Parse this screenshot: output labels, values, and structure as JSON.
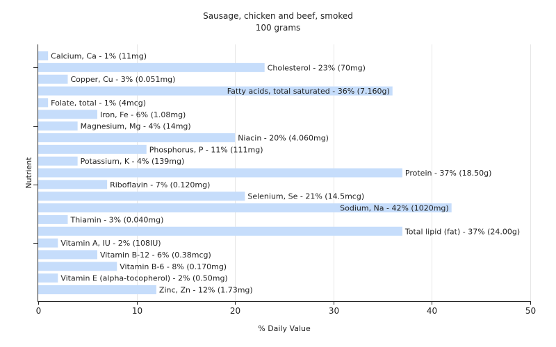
{
  "chart_data": {
    "type": "bar",
    "orientation": "horizontal",
    "title": "Sausage, chicken and beef, smoked",
    "subtitle": "100 grams",
    "xlabel": "% Daily Value",
    "ylabel": "Nutrient",
    "xlim": [
      0,
      50
    ],
    "xticks": [
      0,
      10,
      20,
      30,
      40,
      50
    ],
    "grid": true,
    "bar_color": "#c6ddfb",
    "categories": [
      "Calcium, Ca",
      "Cholesterol",
      "Copper, Cu",
      "Fatty acids, total saturated",
      "Folate, total",
      "Iron, Fe",
      "Magnesium, Mg",
      "Niacin",
      "Phosphorus, P",
      "Potassium, K",
      "Protein",
      "Riboflavin",
      "Selenium, Se",
      "Sodium, Na",
      "Thiamin",
      "Total lipid (fat)",
      "Vitamin A, IU",
      "Vitamin B-12",
      "Vitamin B-6",
      "Vitamin E (alpha-tocopherol)",
      "Zinc, Zn"
    ],
    "values": [
      1,
      23,
      3,
      36,
      1,
      6,
      4,
      20,
      11,
      4,
      37,
      7,
      21,
      42,
      3,
      37,
      2,
      6,
      8,
      2,
      12
    ],
    "labels": [
      "Calcium, Ca - 1% (11mg)",
      "Cholesterol - 23% (70mg)",
      "Copper, Cu - 3% (0.051mg)",
      "Fatty acids, total saturated - 36% (7.160g)",
      "Folate, total - 1% (4mcg)",
      "Iron, Fe - 6% (1.08mg)",
      "Magnesium, Mg - 4% (14mg)",
      "Niacin - 20% (4.060mg)",
      "Phosphorus, P - 11% (111mg)",
      "Potassium, K - 4% (139mg)",
      "Protein - 37% (18.50g)",
      "Riboflavin - 7% (0.120mg)",
      "Selenium, Se - 21% (14.5mcg)",
      "Sodium, Na - 42% (1020mg)",
      "Thiamin - 3% (0.040mg)",
      "Total lipid (fat) - 37% (24.00g)",
      "Vitamin A, IU - 2% (108IU)",
      "Vitamin B-12 - 6% (0.38mcg)",
      "Vitamin B-6 - 8% (0.170mg)",
      "Vitamin E (alpha-tocopherol) - 2% (0.50mg)",
      "Zinc, Zn - 12% (1.73mg)"
    ]
  }
}
